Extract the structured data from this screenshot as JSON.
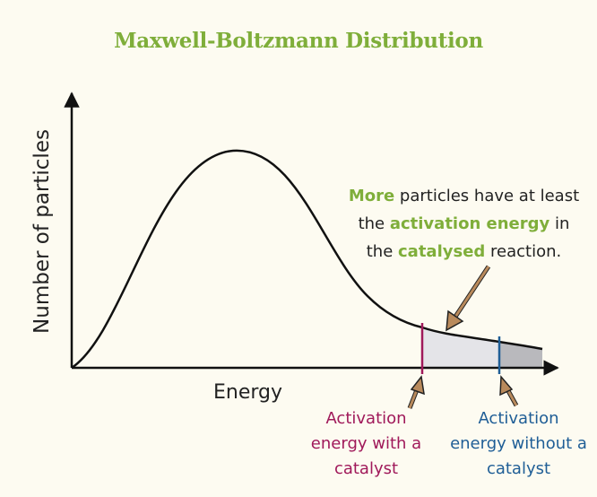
{
  "title": "Maxwell-Boltzmann Distribution",
  "axes": {
    "y_label": "Number of particles",
    "x_label": "Energy"
  },
  "annotation": {
    "word_more": "More",
    "text_1": " particles have at least the ",
    "word_activation_energy": "activation energy",
    "text_2": " in the ",
    "word_catalysed": "catalysed",
    "text_3": " reaction."
  },
  "markers": {
    "with_catalyst": "Activation energy with a catalyst",
    "without_catalyst": "Activation energy without a catalyst"
  },
  "colors": {
    "title": "#7fae3a",
    "with_catalyst": "#a0195a",
    "without_catalyst": "#1f5e96",
    "arrow": "#b98a5c",
    "shade_light": "#e4e4e8",
    "shade_dark": "#b9b9bd"
  }
}
